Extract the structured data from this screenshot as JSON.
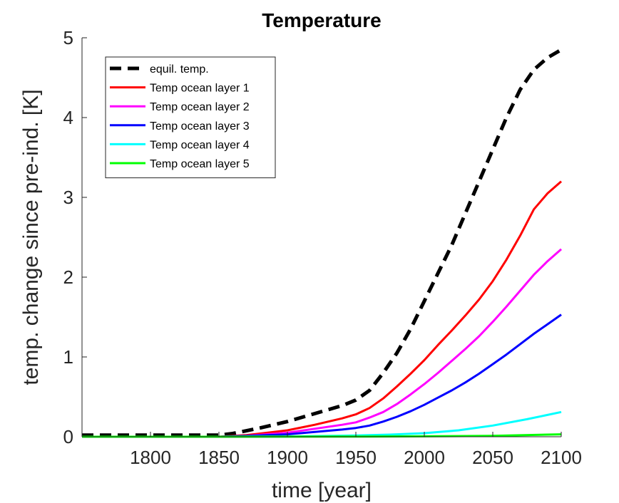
{
  "chart_data": {
    "type": "line",
    "title": "Temperature",
    "xlabel": "time [year]",
    "ylabel": "temp. change since pre-ind. [K]",
    "xlim": [
      1750,
      2100
    ],
    "ylim": [
      0,
      5
    ],
    "xticks": [
      1800,
      1850,
      1900,
      1950,
      2000,
      2050,
      2100
    ],
    "yticks": [
      0,
      1,
      2,
      3,
      4,
      5
    ],
    "legend_position": "top-left",
    "grid": false,
    "series": [
      {
        "name": "equil. temp.",
        "color": "#000000",
        "style": "dashed",
        "points": [
          [
            1750,
            0.02
          ],
          [
            1850,
            0.02
          ],
          [
            1860,
            0.04
          ],
          [
            1880,
            0.11
          ],
          [
            1900,
            0.19
          ],
          [
            1920,
            0.29
          ],
          [
            1940,
            0.39
          ],
          [
            1950,
            0.46
          ],
          [
            1960,
            0.58
          ],
          [
            1970,
            0.8
          ],
          [
            1980,
            1.05
          ],
          [
            1990,
            1.35
          ],
          [
            2000,
            1.7
          ],
          [
            2010,
            2.05
          ],
          [
            2020,
            2.4
          ],
          [
            2030,
            2.8
          ],
          [
            2040,
            3.2
          ],
          [
            2050,
            3.6
          ],
          [
            2060,
            4.0
          ],
          [
            2070,
            4.35
          ],
          [
            2080,
            4.6
          ],
          [
            2090,
            4.75
          ],
          [
            2100,
            4.85
          ]
        ]
      },
      {
        "name": "Temp ocean layer 1",
        "color": "#ff0000",
        "style": "solid",
        "points": [
          [
            1750,
            0.0
          ],
          [
            1850,
            0.0
          ],
          [
            1870,
            0.02
          ],
          [
            1900,
            0.08
          ],
          [
            1920,
            0.15
          ],
          [
            1940,
            0.23
          ],
          [
            1950,
            0.28
          ],
          [
            1960,
            0.36
          ],
          [
            1970,
            0.48
          ],
          [
            1980,
            0.63
          ],
          [
            1990,
            0.79
          ],
          [
            2000,
            0.96
          ],
          [
            2010,
            1.15
          ],
          [
            2020,
            1.33
          ],
          [
            2030,
            1.52
          ],
          [
            2040,
            1.72
          ],
          [
            2050,
            1.95
          ],
          [
            2060,
            2.22
          ],
          [
            2070,
            2.52
          ],
          [
            2080,
            2.85
          ],
          [
            2090,
            3.05
          ],
          [
            2100,
            3.2
          ]
        ]
      },
      {
        "name": "Temp ocean layer 2",
        "color": "#ff00ff",
        "style": "solid",
        "points": [
          [
            1750,
            0.0
          ],
          [
            1850,
            0.0
          ],
          [
            1870,
            0.01
          ],
          [
            1900,
            0.05
          ],
          [
            1920,
            0.1
          ],
          [
            1940,
            0.15
          ],
          [
            1950,
            0.18
          ],
          [
            1960,
            0.24
          ],
          [
            1970,
            0.31
          ],
          [
            1980,
            0.41
          ],
          [
            1990,
            0.53
          ],
          [
            2000,
            0.66
          ],
          [
            2010,
            0.8
          ],
          [
            2020,
            0.95
          ],
          [
            2030,
            1.1
          ],
          [
            2040,
            1.26
          ],
          [
            2050,
            1.44
          ],
          [
            2060,
            1.63
          ],
          [
            2070,
            1.83
          ],
          [
            2080,
            2.03
          ],
          [
            2090,
            2.2
          ],
          [
            2100,
            2.35
          ]
        ]
      },
      {
        "name": "Temp ocean layer 3",
        "color": "#0000ff",
        "style": "solid",
        "points": [
          [
            1750,
            0.0
          ],
          [
            1850,
            0.0
          ],
          [
            1870,
            0.01
          ],
          [
            1900,
            0.03
          ],
          [
            1920,
            0.06
          ],
          [
            1940,
            0.09
          ],
          [
            1950,
            0.11
          ],
          [
            1960,
            0.14
          ],
          [
            1970,
            0.19
          ],
          [
            1980,
            0.25
          ],
          [
            1990,
            0.32
          ],
          [
            2000,
            0.4
          ],
          [
            2010,
            0.49
          ],
          [
            2020,
            0.58
          ],
          [
            2030,
            0.68
          ],
          [
            2040,
            0.79
          ],
          [
            2050,
            0.91
          ],
          [
            2060,
            1.03
          ],
          [
            2070,
            1.16
          ],
          [
            2080,
            1.29
          ],
          [
            2090,
            1.41
          ],
          [
            2100,
            1.53
          ]
        ]
      },
      {
        "name": "Temp ocean layer 4",
        "color": "#00ffff",
        "style": "solid",
        "points": [
          [
            1750,
            0.0
          ],
          [
            1850,
            0.0
          ],
          [
            1900,
            0.003
          ],
          [
            1950,
            0.015
          ],
          [
            1975,
            0.027
          ],
          [
            2000,
            0.045
          ],
          [
            2025,
            0.08
          ],
          [
            2050,
            0.14
          ],
          [
            2075,
            0.22
          ],
          [
            2100,
            0.31
          ]
        ]
      },
      {
        "name": "Temp ocean layer 5",
        "color": "#00ff00",
        "style": "solid",
        "points": [
          [
            1750,
            0.0
          ],
          [
            1850,
            0.0
          ],
          [
            1950,
            0.002
          ],
          [
            2000,
            0.005
          ],
          [
            2050,
            0.011
          ],
          [
            2100,
            0.03
          ]
        ]
      }
    ]
  }
}
